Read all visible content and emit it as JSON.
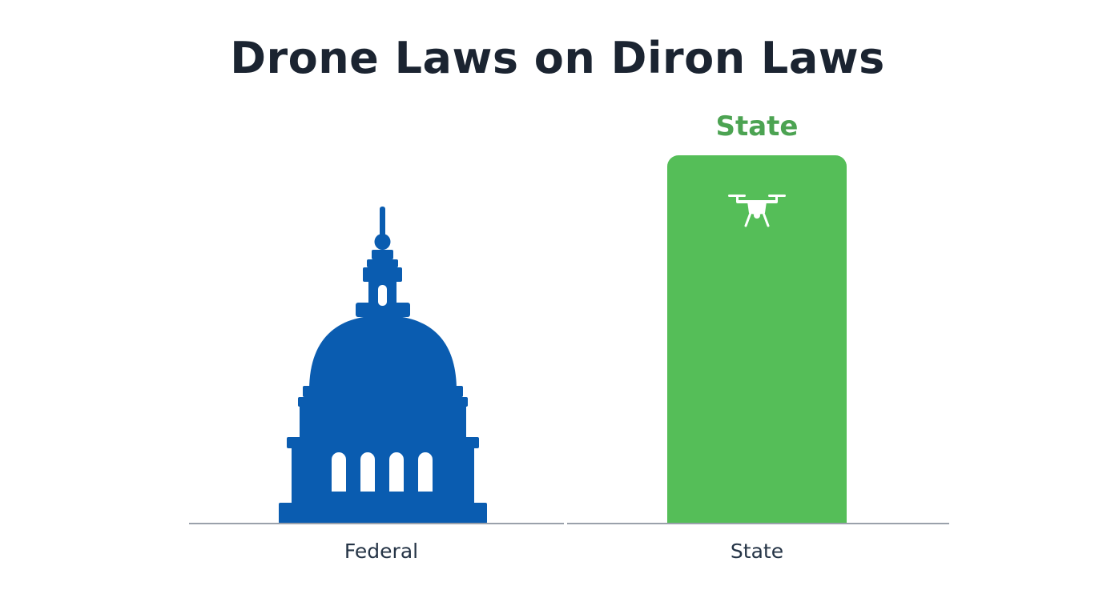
{
  "title": "Drone Laws on Diron Laws",
  "federal": {
    "label": "Federal",
    "icon": "capitol-dome-icon",
    "color": "#0a5cb0"
  },
  "state": {
    "heading": "State",
    "label": "State",
    "icon": "drone-icon",
    "color": "#55be58",
    "heading_color": "#4ca352"
  },
  "colors": {
    "title": "#1b2431",
    "label": "#253446",
    "baseline": "#9aa1ab"
  }
}
